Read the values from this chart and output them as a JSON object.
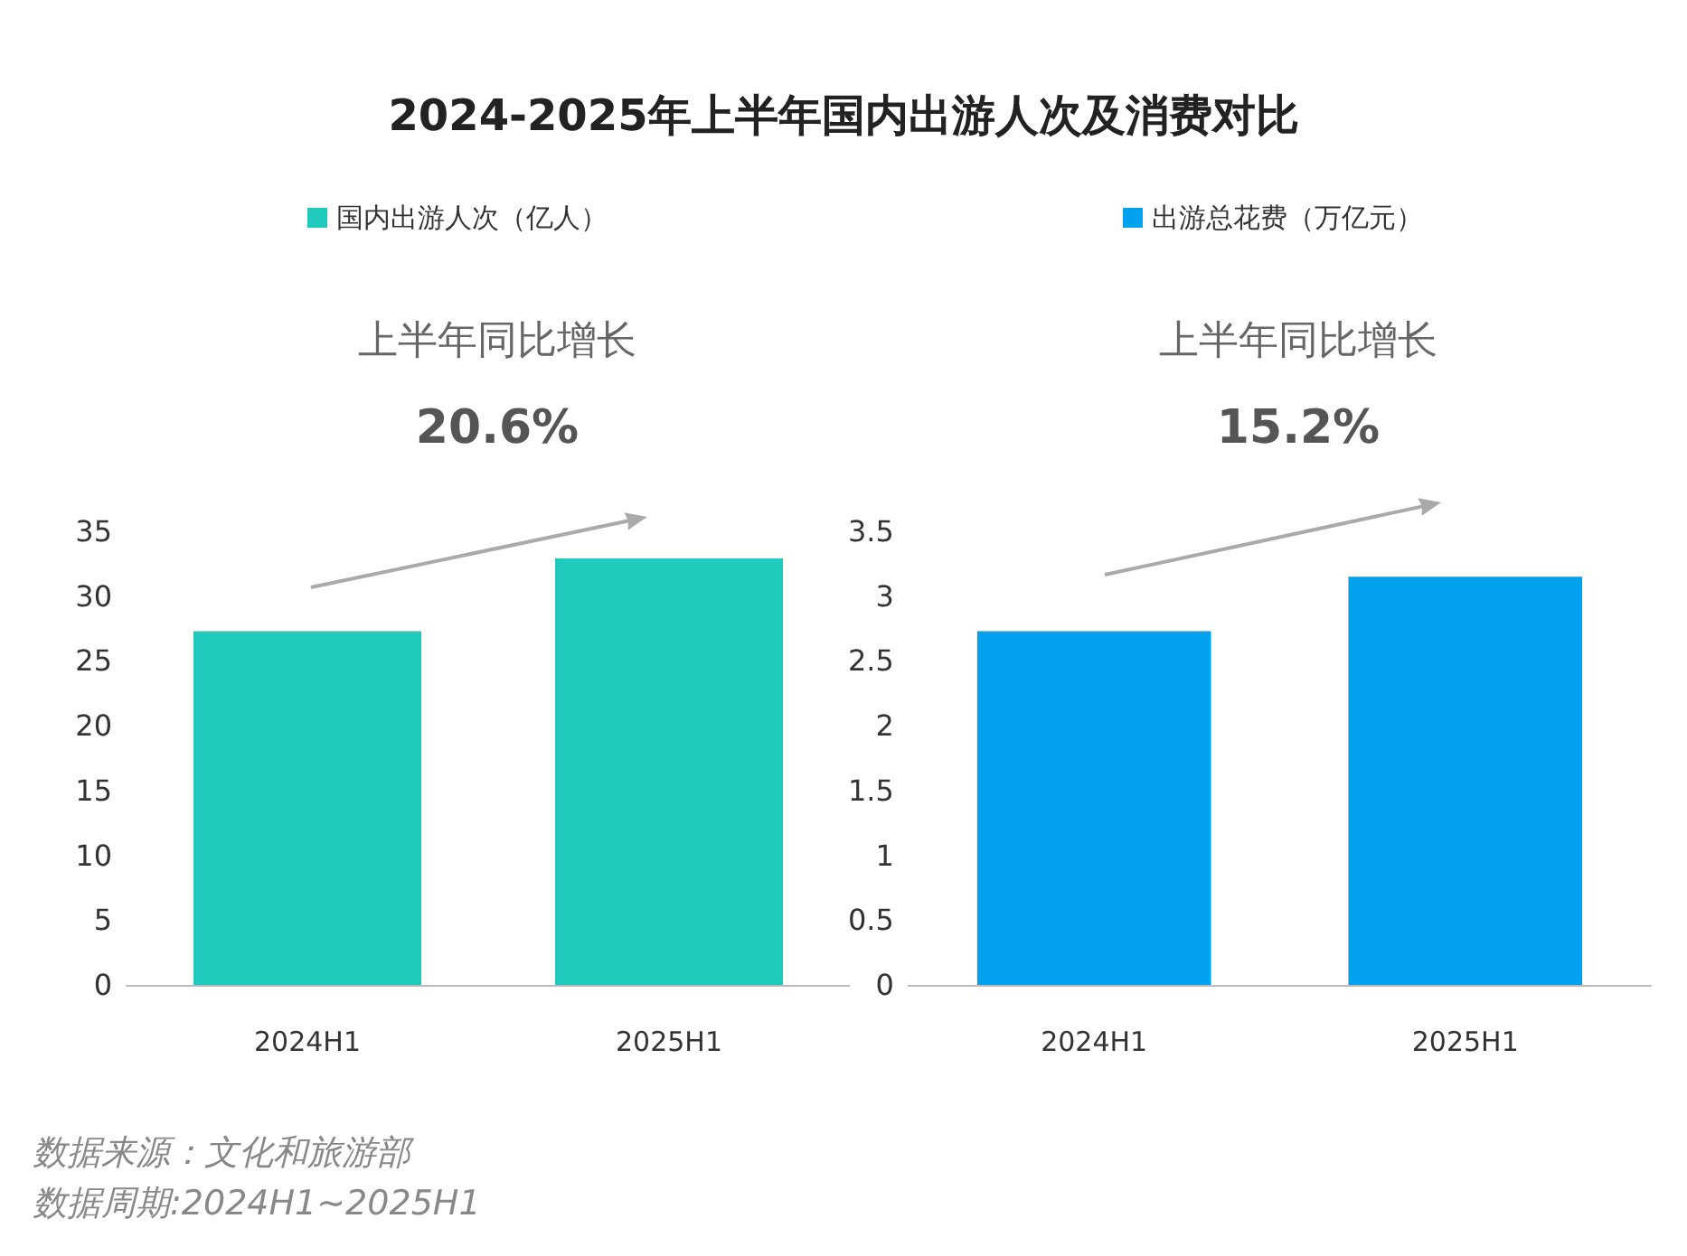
{
  "chart_data": [
    {
      "type": "bar",
      "title": "2024-2025年上半年国内出游人次及消费对比",
      "categories": [
        "2024H1",
        "2025H1"
      ],
      "series": [
        {
          "name": "国内出游人次（亿人）",
          "color": "#20cbbd",
          "values": [
            27.3,
            32.9
          ]
        }
      ],
      "ylim": [
        0,
        35
      ],
      "yticks": [
        0,
        5,
        10,
        15,
        20,
        25,
        30,
        35
      ],
      "grid": false,
      "legend": "top left",
      "annotations": [
        "上半年同比增长",
        "20.6%",
        "数据来源：文化和旅游部",
        "数据周期:2024H1~2025H1"
      ]
    },
    {
      "type": "bar",
      "categories": [
        "2024H1",
        "2025H1"
      ],
      "series": [
        {
          "name": "出游总花费（万亿元）",
          "color": "#03a2ef",
          "values": [
            2.73,
            3.15
          ]
        }
      ],
      "ylim": [
        0,
        3.5
      ],
      "yticks": [
        0,
        0.5,
        1,
        1.5,
        2,
        2.5,
        3,
        3.5
      ],
      "grid": false,
      "legend": "top left",
      "annotations": [
        "上半年同比增长",
        "15.2%"
      ]
    }
  ]
}
